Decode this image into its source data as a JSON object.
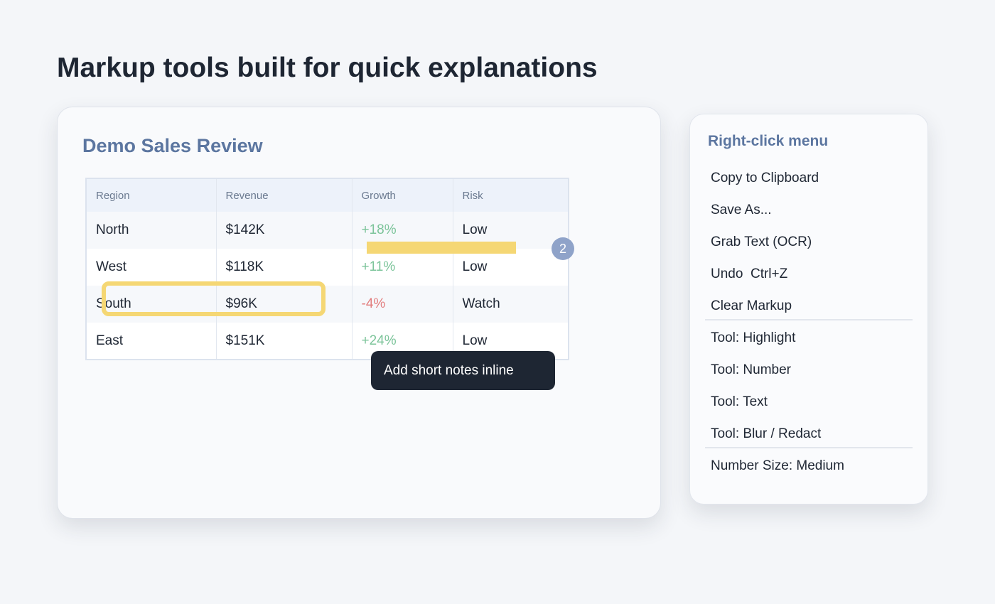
{
  "header": {
    "title": "Markup tools built for quick explanations"
  },
  "demo": {
    "title": "Demo Sales Review",
    "table": {
      "columns": [
        "Region",
        "Revenue",
        "Growth",
        "Risk"
      ],
      "rows": [
        [
          "North",
          "$142K",
          "+18%",
          "Low"
        ],
        [
          "West",
          "$118K",
          "+11%",
          "Low"
        ],
        [
          "South",
          "$96K",
          "-4%",
          "Watch"
        ],
        [
          "East",
          "$151K",
          "+24%",
          "Low"
        ]
      ]
    },
    "badge": "2",
    "tooltip": "Add short notes inline"
  },
  "menu": {
    "title": "Right-click menu",
    "items": [
      "Copy to Clipboard",
      "Save As...",
      "Grab Text (OCR)",
      "Undo  Ctrl+Z",
      "Clear Markup",
      "Tool: Highlight",
      "Tool: Number",
      "Tool: Text",
      "Tool: Blur / Redact",
      "Number Size: Medium"
    ]
  }
}
